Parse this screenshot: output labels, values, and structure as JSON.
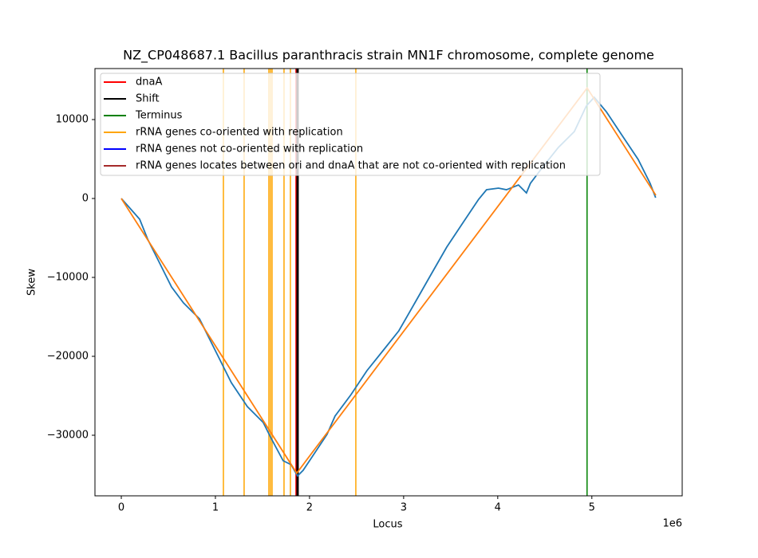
{
  "chart_data": {
    "type": "line",
    "title": "NZ_CP048687.1 Bacillus paranthracis strain MN1F chromosome, complete genome",
    "x_label": "Locus",
    "y_label": "Skew",
    "x_offset_label": "1e6",
    "xlim": [
      -0.28,
      5.96
    ],
    "ylim": [
      -37677,
      16465
    ],
    "xticks": [
      0,
      1,
      2,
      3,
      4,
      5
    ],
    "yticks": [
      {
        "value": -30000,
        "label": "−30000"
      },
      {
        "value": -20000,
        "label": "−20000"
      },
      {
        "value": -10000,
        "label": "−10000"
      },
      0,
      10000
    ],
    "legend_position": "upper left",
    "series": [
      {
        "color": "#1f77b4",
        "x": [
          0,
          0.068,
          0.195,
          0.28,
          0.407,
          0.534,
          0.661,
          0.831,
          1.0,
          1.169,
          1.339,
          1.508,
          1.593,
          1.72,
          1.805,
          1.873,
          1.932,
          2.017,
          2.186,
          2.271,
          2.441,
          2.61,
          2.78,
          2.949,
          3.119,
          3.288,
          3.458,
          3.627,
          3.797,
          3.881,
          4.008,
          4.093,
          4.22,
          4.305,
          4.347,
          4.475,
          4.644,
          4.814,
          4.941,
          5.025,
          5.153,
          5.322,
          5.492,
          5.619,
          5.678
        ],
        "values": [
          0,
          -909,
          -2626,
          -5152,
          -8182,
          -11212,
          -13232,
          -15253,
          -19293,
          -23333,
          -26364,
          -28384,
          -30404,
          -33232,
          -33737,
          -35152,
          -34444,
          -32929,
          -29899,
          -27576,
          -24848,
          -21818,
          -19293,
          -16768,
          -13232,
          -9697,
          -6162,
          -3131,
          -101,
          1111,
          1313,
          1111,
          1717,
          707,
          1919,
          3939,
          6465,
          8485,
          11717,
          12828,
          11010,
          7980,
          4949,
          1919,
          101
        ]
      },
      {
        "color": "#ff7f0e",
        "x": [
          0,
          1.864,
          4.95,
          5.68
        ],
        "values": [
          0,
          -34800,
          14000,
          400
        ]
      }
    ],
    "markers": [
      {
        "name": "dnaA",
        "color": "#ff0000",
        "x": [
          1.856
        ]
      },
      {
        "name": "Shift",
        "color": "#000000",
        "x": [
          1.873
        ]
      },
      {
        "name": "Terminus",
        "color": "#008000",
        "x": [
          4.949
        ]
      },
      {
        "name": "rRNA genes co-oriented with replication",
        "color": "#ffa500",
        "x": [
          1.085,
          1.305,
          1.568,
          1.585,
          1.602,
          1.729,
          1.797,
          2.492
        ]
      },
      {
        "name": "rRNA genes not co-oriented with replication",
        "color": "#0000ff",
        "x": []
      },
      {
        "name": "rRNA genes locates between ori and dnaA that are not co-oriented with replication",
        "color": "#a52a2a",
        "x": []
      }
    ]
  }
}
